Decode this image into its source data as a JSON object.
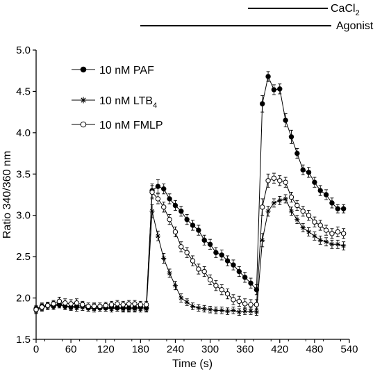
{
  "chart_data": {
    "type": "line",
    "xlabel": "Time (s)",
    "ylabel": "Ratio 340/360 nm",
    "xlim": [
      0,
      540
    ],
    "ylim": [
      1.5,
      5.0
    ],
    "xticks": [
      0,
      60,
      120,
      180,
      240,
      300,
      360,
      420,
      480,
      540
    ],
    "yticks": [
      1.5,
      2.0,
      2.5,
      3.0,
      3.5,
      4.0,
      4.5,
      5.0
    ],
    "xtick_labels": [
      "0",
      "60",
      "120",
      "180",
      "240",
      "300",
      "360",
      "420",
      "480",
      "540"
    ],
    "ytick_labels": [
      "1.5",
      "2.0",
      "2.5",
      "3.0",
      "3.5",
      "4.0",
      "4.5",
      "5.0"
    ],
    "grid": false,
    "legend_position": "top-left",
    "treatment_bars": [
      {
        "label": "CaCl",
        "label_subscript": "2",
        "start": 360,
        "end": 540
      },
      {
        "label": "Agonist",
        "start": 180,
        "end": 540
      }
    ],
    "series": [
      {
        "name": "10 nM PAF",
        "name_subscript": "",
        "marker": "filled-circle",
        "x": [
          0,
          10,
          20,
          30,
          40,
          50,
          60,
          70,
          80,
          90,
          100,
          110,
          120,
          130,
          140,
          150,
          160,
          170,
          180,
          190,
          200,
          210,
          220,
          230,
          240,
          250,
          260,
          270,
          280,
          290,
          300,
          310,
          320,
          330,
          340,
          350,
          360,
          370,
          380,
          390,
          400,
          410,
          420,
          430,
          440,
          450,
          460,
          470,
          480,
          490,
          500,
          510,
          520,
          530
        ],
        "y": [
          1.87,
          1.9,
          1.91,
          1.9,
          1.92,
          1.9,
          1.89,
          1.9,
          1.91,
          1.88,
          1.89,
          1.88,
          1.88,
          1.89,
          1.88,
          1.88,
          1.88,
          1.88,
          1.89,
          1.88,
          3.3,
          3.35,
          3.32,
          3.2,
          3.12,
          3.05,
          2.95,
          2.88,
          2.82,
          2.7,
          2.65,
          2.55,
          2.52,
          2.45,
          2.4,
          2.32,
          2.25,
          2.18,
          2.1,
          4.35,
          4.68,
          4.52,
          4.53,
          4.15,
          3.95,
          3.75,
          3.55,
          3.52,
          3.4,
          3.3,
          3.25,
          3.15,
          3.08,
          3.08
        ],
        "err": [
          0.04,
          0.04,
          0.04,
          0.04,
          0.04,
          0.04,
          0.04,
          0.04,
          0.04,
          0.04,
          0.04,
          0.04,
          0.04,
          0.04,
          0.04,
          0.04,
          0.04,
          0.04,
          0.04,
          0.04,
          0.08,
          0.08,
          0.06,
          0.06,
          0.06,
          0.06,
          0.06,
          0.06,
          0.06,
          0.06,
          0.06,
          0.06,
          0.06,
          0.06,
          0.06,
          0.06,
          0.06,
          0.06,
          0.06,
          0.1,
          0.06,
          0.06,
          0.06,
          0.08,
          0.08,
          0.06,
          0.06,
          0.06,
          0.06,
          0.06,
          0.06,
          0.06,
          0.05,
          0.05
        ]
      },
      {
        "name": "10 nM LTB",
        "name_subscript": "4",
        "marker": "asterisk",
        "x": [
          0,
          10,
          20,
          30,
          40,
          50,
          60,
          70,
          80,
          90,
          100,
          110,
          120,
          130,
          140,
          150,
          160,
          170,
          180,
          190,
          200,
          210,
          220,
          230,
          240,
          250,
          260,
          270,
          280,
          290,
          300,
          310,
          320,
          330,
          340,
          350,
          360,
          370,
          380,
          390,
          400,
          410,
          420,
          430,
          440,
          450,
          460,
          470,
          480,
          490,
          500,
          510,
          520,
          530
        ],
        "y": [
          1.85,
          1.88,
          1.9,
          1.92,
          1.93,
          1.9,
          1.9,
          1.88,
          1.89,
          1.88,
          1.87,
          1.88,
          1.88,
          1.87,
          1.88,
          1.87,
          1.87,
          1.87,
          1.87,
          1.87,
          3.05,
          2.75,
          2.48,
          2.3,
          2.15,
          2.0,
          1.95,
          1.9,
          1.88,
          1.87,
          1.86,
          1.85,
          1.85,
          1.84,
          1.85,
          1.83,
          1.84,
          1.84,
          1.83,
          2.7,
          3.05,
          3.15,
          3.18,
          3.2,
          3.05,
          2.95,
          2.85,
          2.8,
          2.75,
          2.7,
          2.68,
          2.65,
          2.65,
          2.63
        ],
        "err": [
          0.04,
          0.04,
          0.04,
          0.04,
          0.04,
          0.04,
          0.04,
          0.04,
          0.04,
          0.04,
          0.04,
          0.04,
          0.04,
          0.04,
          0.04,
          0.04,
          0.04,
          0.04,
          0.04,
          0.04,
          0.08,
          0.06,
          0.06,
          0.05,
          0.05,
          0.05,
          0.04,
          0.04,
          0.04,
          0.04,
          0.04,
          0.04,
          0.04,
          0.04,
          0.04,
          0.04,
          0.04,
          0.04,
          0.04,
          0.08,
          0.06,
          0.05,
          0.05,
          0.05,
          0.05,
          0.05,
          0.05,
          0.05,
          0.05,
          0.05,
          0.05,
          0.05,
          0.05,
          0.05
        ]
      },
      {
        "name": "10 nM FMLP",
        "name_subscript": "",
        "marker": "open-circle",
        "x": [
          0,
          10,
          20,
          30,
          40,
          50,
          60,
          70,
          80,
          90,
          100,
          110,
          120,
          130,
          140,
          150,
          160,
          170,
          180,
          190,
          200,
          210,
          220,
          230,
          240,
          250,
          260,
          270,
          280,
          290,
          300,
          310,
          320,
          330,
          340,
          350,
          360,
          370,
          380,
          390,
          400,
          410,
          420,
          430,
          440,
          450,
          460,
          470,
          480,
          490,
          500,
          510,
          520,
          530
        ],
        "y": [
          1.86,
          1.89,
          1.91,
          1.93,
          1.96,
          1.94,
          1.93,
          1.94,
          1.92,
          1.9,
          1.9,
          1.9,
          1.91,
          1.92,
          1.93,
          1.92,
          1.93,
          1.93,
          1.92,
          1.92,
          3.28,
          3.2,
          3.1,
          2.95,
          2.8,
          2.62,
          2.55,
          2.45,
          2.35,
          2.32,
          2.22,
          2.15,
          2.1,
          2.05,
          1.98,
          1.96,
          1.93,
          1.92,
          1.92,
          3.1,
          3.42,
          3.45,
          3.42,
          3.4,
          3.22,
          3.12,
          3.05,
          3.0,
          2.92,
          2.88,
          2.82,
          2.78,
          2.8,
          2.78
        ],
        "err": [
          0.04,
          0.04,
          0.04,
          0.04,
          0.05,
          0.05,
          0.05,
          0.05,
          0.04,
          0.04,
          0.04,
          0.04,
          0.04,
          0.04,
          0.04,
          0.04,
          0.04,
          0.04,
          0.04,
          0.04,
          0.08,
          0.06,
          0.06,
          0.06,
          0.06,
          0.06,
          0.06,
          0.06,
          0.06,
          0.06,
          0.06,
          0.06,
          0.06,
          0.06,
          0.06,
          0.06,
          0.06,
          0.06,
          0.06,
          0.1,
          0.08,
          0.06,
          0.06,
          0.06,
          0.06,
          0.06,
          0.06,
          0.06,
          0.06,
          0.06,
          0.06,
          0.06,
          0.06,
          0.06
        ]
      }
    ]
  }
}
